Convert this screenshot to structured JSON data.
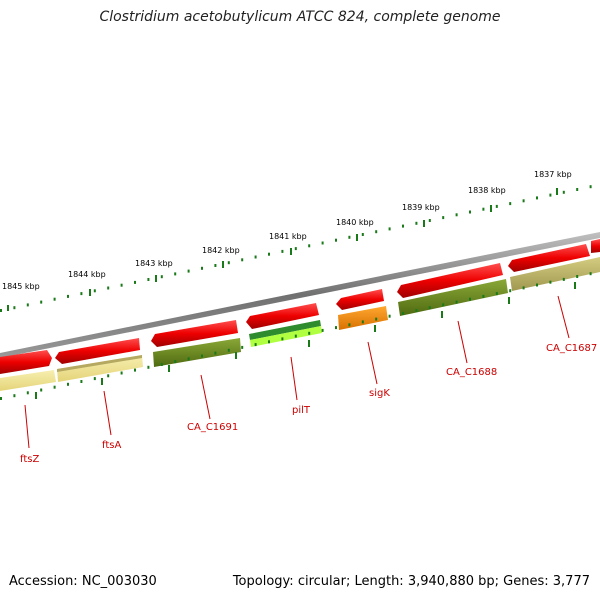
{
  "title": "Clostridium acetobutylicum ATCC 824, complete genome",
  "footer": {
    "accession_label": "Accession:",
    "accession": "NC_003030",
    "topology_label": "Topology:",
    "topology": "circular",
    "length_label": "Length:",
    "length": "3,940,880 bp",
    "genes_label": "Genes:",
    "genes": "3,777"
  },
  "scale_ticks": [
    "1845 kbp",
    "1844 kbp",
    "1843 kbp",
    "1842 kbp",
    "1841 kbp",
    "1840 kbp",
    "1839 kbp",
    "1838 kbp",
    "1837 kbp"
  ],
  "colors": {
    "backbone": "#808080",
    "forward_gene": "#e00000",
    "tick": "#1a7a1a",
    "olive": "#6b8a1f",
    "pale_yellow": "#ece08a",
    "khaki": "#b8b060",
    "orange": "#ff8c00",
    "green_gene": "#2e8b2e",
    "lime": "#b0ff40",
    "label": "#cc0000"
  },
  "gene_labels": [
    "ftsZ",
    "ftsA",
    "CA_C1691",
    "pilT",
    "sigK",
    "CA_C1688",
    "CA_C1687"
  ]
}
